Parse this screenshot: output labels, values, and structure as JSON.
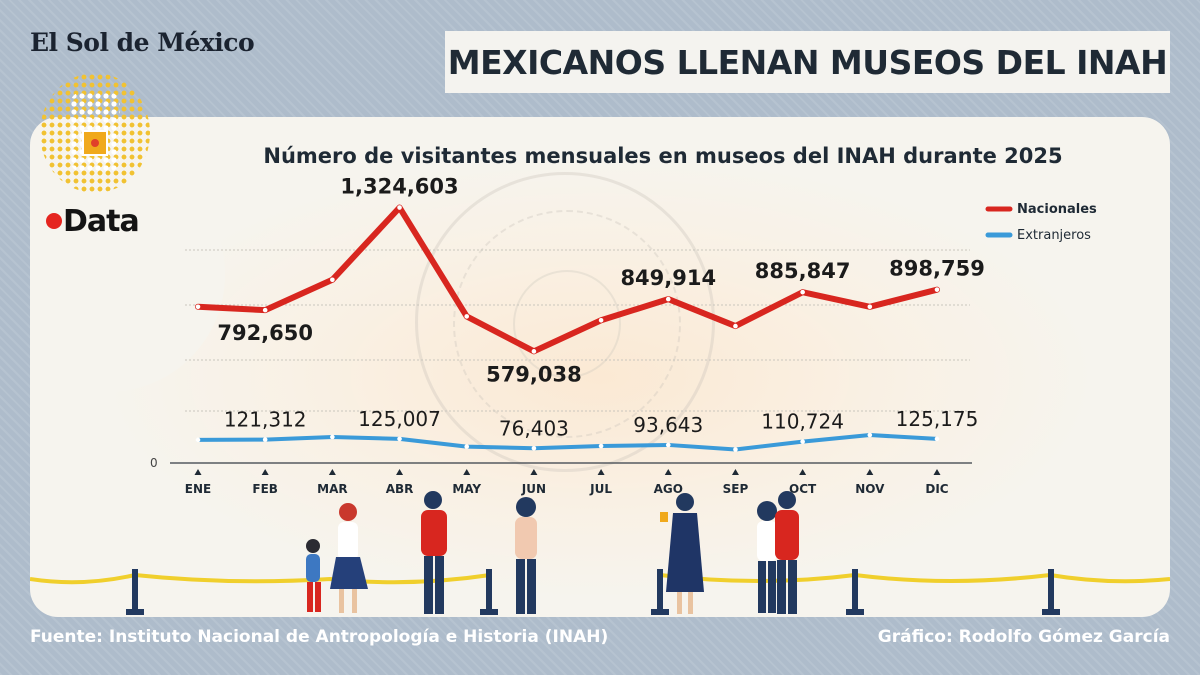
{
  "brand": "El Sol de México",
  "headline": "MEXICANOS LLENAN MUSEOS DEL INAH",
  "logo_text": "Data",
  "source": "Fuente: Instituto Nacional de Antropología e Historia (INAH)",
  "credit": "Gráfico: Rodolfo Gómez García",
  "colors": {
    "nacionales": "#d8261f",
    "extranjeros": "#3a9ad9",
    "background": "#aebccb",
    "panel": "#f6f4ee"
  },
  "chart_data": {
    "type": "line",
    "title": "Número de visitantes mensuales en museos del INAH durante 2025",
    "categories": [
      "ENE",
      "FEB",
      "MAR",
      "ABR",
      "MAY",
      "JUN",
      "JUL",
      "AGO",
      "SEP",
      "OCT",
      "NOV",
      "DIC"
    ],
    "ylim": [
      0,
      1400000
    ],
    "y_tick_labels": [
      "0"
    ],
    "grid": true,
    "legend_position": "top-right",
    "series": [
      {
        "name": "Nacionales",
        "color": "#d8261f",
        "values": [
          810000,
          792650,
          950000,
          1324603,
          760000,
          579038,
          740000,
          849914,
          710000,
          885847,
          810000,
          898759
        ],
        "labels": [
          "",
          "792,650",
          "",
          "1,324,603",
          "",
          "579,038",
          "",
          "849,914",
          "",
          "885,847",
          "",
          "898,759"
        ]
      },
      {
        "name": "Extranjeros",
        "color": "#3a9ad9",
        "values": [
          120000,
          121312,
          135000,
          125007,
          85000,
          76403,
          88000,
          93643,
          70000,
          110724,
          145000,
          125175
        ],
        "labels": [
          "",
          "121,312",
          "",
          "125,007",
          "",
          "76,403",
          "",
          "93,643",
          "",
          "110,724",
          "",
          "125,175"
        ]
      }
    ]
  }
}
